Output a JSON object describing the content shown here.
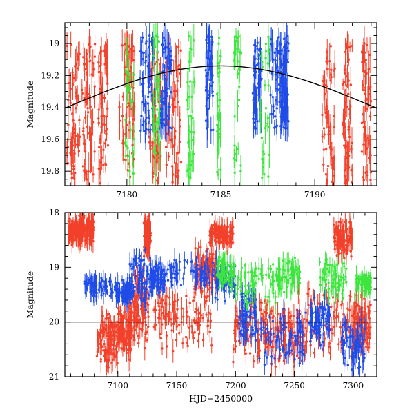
{
  "chart_data": [
    {
      "type": "scatter",
      "panel": "top",
      "title": "",
      "xlabel": "",
      "ylabel": "Magnitude",
      "xlim": [
        7176.7,
        7193.3
      ],
      "ylim": [
        19.89,
        18.87
      ],
      "y_inverted": true,
      "xticks": [
        7180,
        7185,
        7190
      ],
      "yticks": [
        19,
        19.2,
        19.4,
        19.6,
        19.8
      ],
      "colors": {
        "red": "#f2402a",
        "blue": "#1f4ce8",
        "green": "#3ce63c",
        "model": "#000000"
      },
      "model_curve": {
        "name": "sinusoid fit",
        "type": "line",
        "mean": 19.39,
        "amplitude": 0.25,
        "peak_x": 7185.0,
        "period": 32.0
      },
      "series": [
        {
          "name": "red",
          "color": "#f2402a",
          "x_ranges": [
            [
              7176.8,
              7177.5
            ],
            [
              7177.6,
              7178.3
            ],
            [
              7178.4,
              7179.0
            ],
            [
              7179.6,
              7180.4
            ],
            [
              7181.2,
              7181.8
            ],
            [
              7182.0,
              7182.9
            ],
            [
              7190.4,
              7191.1
            ],
            [
              7191.5,
              7192.0
            ],
            [
              7192.5,
              7193.0
            ]
          ],
          "y_range": [
            19.0,
            19.88
          ],
          "n_points": 480
        },
        {
          "name": "blue",
          "color": "#1f4ce8",
          "x_ranges": [
            [
              7180.7,
              7181.5
            ],
            [
              7181.7,
              7182.4
            ],
            [
              7184.2,
              7184.6
            ],
            [
              7186.7,
              7187.2
            ],
            [
              7187.6,
              7188.3
            ],
            [
              7188.3,
              7188.6
            ]
          ],
          "y_range": [
            18.95,
            19.55
          ],
          "n_points": 320
        },
        {
          "name": "green",
          "color": "#3ce63c",
          "x_ranges": [
            [
              7179.9,
              7180.4
            ],
            [
              7181.4,
              7181.8
            ],
            [
              7183.2,
              7183.6
            ],
            [
              7184.8,
              7185.0
            ],
            [
              7185.7,
              7186.1
            ],
            [
              7187.1,
              7187.6
            ]
          ],
          "y_range": [
            18.95,
            19.85
          ],
          "n_points": 180
        }
      ]
    },
    {
      "type": "scatter",
      "panel": "bottom",
      "title": "",
      "xlabel": "HJD−2450000",
      "ylabel": "Magnitude",
      "xlim": [
        7055,
        7320
      ],
      "ylim": [
        21,
        18
      ],
      "y_inverted": true,
      "xticks": [
        7100,
        7150,
        7200,
        7250,
        7300
      ],
      "yticks": [
        18,
        19,
        20,
        21
      ],
      "reference_line": {
        "y": 20.0,
        "color": "#000000"
      },
      "series": [
        {
          "name": "red",
          "color": "#f2402a",
          "clusters": [
            [
              7058,
              7070,
              18.1,
              18.6
            ],
            [
              7066,
              7080,
              18.0,
              18.6
            ],
            [
              7082,
              7100,
              19.8,
              20.9
            ],
            [
              7100,
              7112,
              19.6,
              20.7
            ],
            [
              7112,
              7126,
              19.0,
              20.5
            ],
            [
              7122,
              7128,
              18.0,
              18.9
            ],
            [
              7130,
              7180,
              19.3,
              20.6
            ],
            [
              7165,
              7185,
              18.5,
              19.6
            ],
            [
              7178,
              7198,
              18.2,
              18.6
            ],
            [
              7198,
              7230,
              19.5,
              20.8
            ],
            [
              7230,
              7260,
              19.6,
              20.9
            ],
            [
              7252,
              7310,
              19.3,
              20.7
            ],
            [
              7283,
              7300,
              18.1,
              18.9
            ],
            [
              7300,
              7315,
              19.6,
              20.6
            ]
          ],
          "n_points": 1400
        },
        {
          "name": "blue",
          "color": "#1f4ce8",
          "clusters": [
            [
              7072,
              7098,
              19.1,
              19.6
            ],
            [
              7098,
              7112,
              19.2,
              19.7
            ],
            [
              7110,
              7128,
              18.6,
              19.8
            ],
            [
              7128,
              7140,
              18.9,
              19.5
            ],
            [
              7140,
              7178,
              18.8,
              19.4
            ],
            [
              7180,
              7200,
              18.8,
              19.7
            ],
            [
              7203,
              7218,
              19.4,
              20.4
            ],
            [
              7218,
              7260,
              19.6,
              20.9
            ],
            [
              7262,
              7280,
              19.5,
              20.5
            ],
            [
              7290,
              7310,
              19.9,
              20.9
            ]
          ],
          "n_points": 700
        },
        {
          "name": "green",
          "color": "#3ce63c",
          "clusters": [
            [
              7184,
              7200,
              18.8,
              19.4
            ],
            [
              7200,
              7235,
              18.9,
              19.8
            ],
            [
              7235,
              7255,
              18.8,
              19.5
            ],
            [
              7270,
              7295,
              18.8,
              19.6
            ],
            [
              7302,
              7315,
              19.1,
              19.5
            ]
          ],
          "n_points": 320
        }
      ]
    }
  ]
}
